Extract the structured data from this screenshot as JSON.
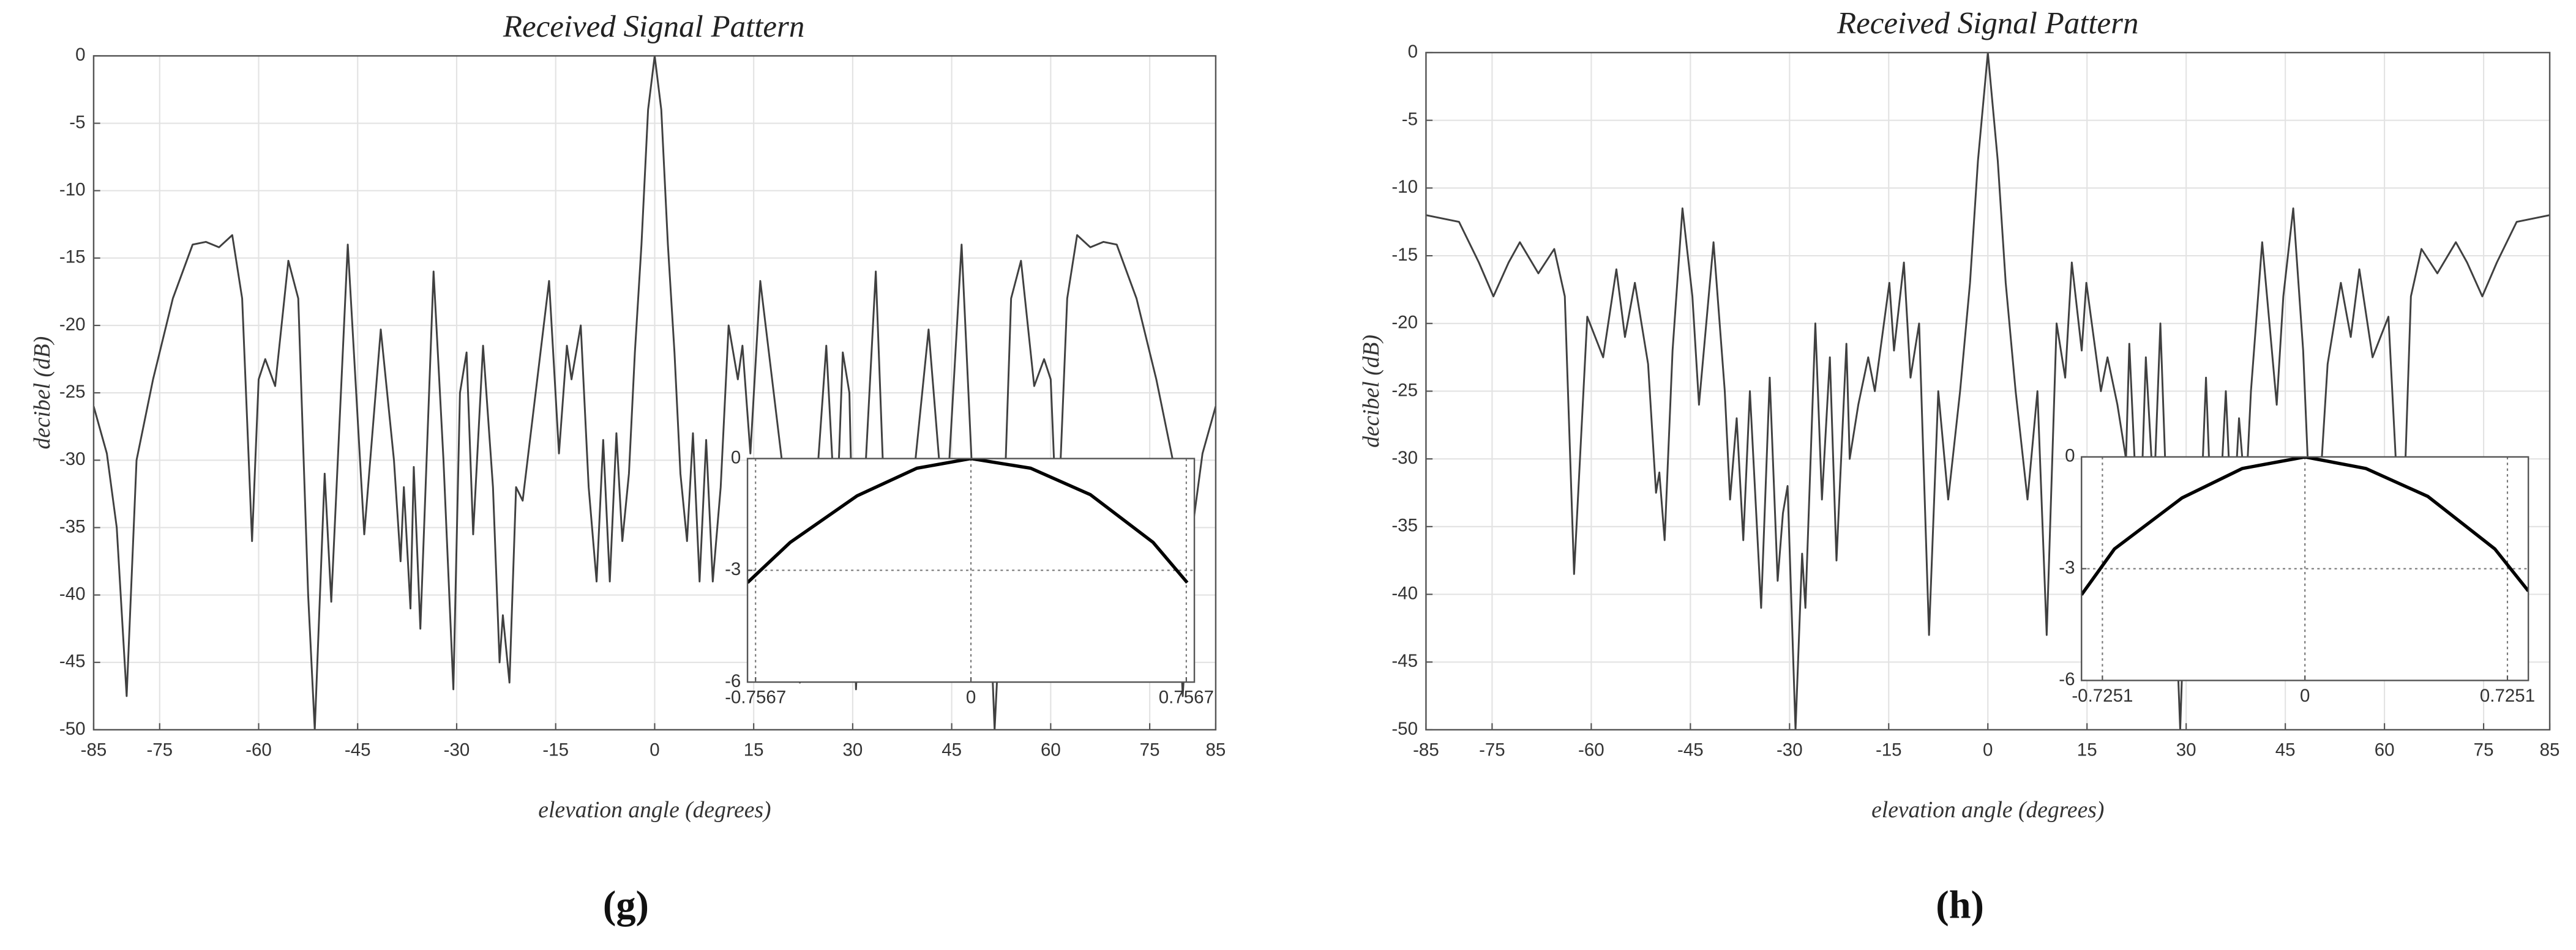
{
  "chart_data": [
    {
      "type": "line",
      "title": "Received Signal Pattern",
      "xlabel": "elevation angle (degrees)",
      "ylabel": "decibel (dB)",
      "caption": "(g)",
      "color": "#404040",
      "grid": true,
      "xlim": [
        -85,
        85
      ],
      "ylim": [
        -50,
        0
      ],
      "xticks": [
        -85,
        -75,
        -60,
        -45,
        -30,
        -15,
        0,
        15,
        30,
        45,
        60,
        75,
        85
      ],
      "yticks": [
        0,
        -5,
        -10,
        -15,
        -20,
        -25,
        -30,
        -35,
        -40,
        -45,
        -50
      ],
      "x": [
        -85,
        -83,
        -81.5,
        -80,
        -78.5,
        -76,
        -73,
        -70,
        -68,
        -66,
        -64,
        -62.5,
        -61,
        -60,
        -59,
        -57.5,
        -55.5,
        -54,
        -52.5,
        -51.5,
        -50,
        -49,
        -46.5,
        -44,
        -41.5,
        -39.5,
        -38.5,
        -38,
        -37,
        -36.5,
        -35.5,
        -33.5,
        -32,
        -30.5,
        -29.5,
        -28.5,
        -27.5,
        -26,
        -24.5,
        -23.5,
        -23,
        -22,
        -21,
        -20,
        -16,
        -14.5,
        -13.3,
        -12.6,
        -11.2,
        -10,
        -8.8,
        -7.8,
        -6.8,
        -5.8,
        -4.9,
        -3.9,
        -3,
        -2,
        -1,
        0,
        1,
        2,
        3,
        3.9,
        4.9,
        5.8,
        6.8,
        7.8,
        8.8,
        10,
        11.2,
        12.6,
        13.3,
        14.5,
        16,
        20,
        21,
        22,
        23,
        23.5,
        24.5,
        26,
        27.5,
        28.5,
        29.5,
        30.5,
        32,
        33.5,
        35.5,
        36.5,
        37,
        38,
        38.5,
        39.5,
        41.5,
        44,
        46.5,
        49,
        50,
        51.5,
        52.5,
        54,
        55.5,
        57.5,
        59,
        60,
        61,
        62.5,
        64,
        66,
        68,
        70,
        73,
        76,
        78.5,
        80,
        81.5,
        83,
        85
      ],
      "values": [
        -26,
        -29.5,
        -35,
        -47.5,
        -30,
        -24,
        -18,
        -14,
        -13.8,
        -14.2,
        -13.3,
        -18,
        -36,
        -24,
        -22.5,
        -24.5,
        -15.2,
        -18,
        -40,
        -50,
        -31,
        -40.5,
        -14,
        -35.5,
        -20.3,
        -30,
        -37.5,
        -32,
        -41,
        -30.5,
        -42.5,
        -16,
        -30,
        -47,
        -25,
        -22,
        -35.5,
        -21.5,
        -32,
        -45,
        -41.5,
        -46.5,
        -32,
        -33,
        -16.7,
        -29.5,
        -21.5,
        -24,
        -20,
        -32,
        -39,
        -28.5,
        -39,
        -28,
        -36,
        -31,
        -22,
        -14,
        -4,
        0,
        -4,
        -14,
        -22,
        -31,
        -36,
        -28,
        -39,
        -28.5,
        -39,
        -32,
        -20,
        -24,
        -21.5,
        -29.5,
        -16.7,
        -33,
        -32,
        -46.5,
        -41.5,
        -45,
        -32,
        -21.5,
        -35.5,
        -22,
        -25,
        -47,
        -30,
        -16,
        -42.5,
        -30.5,
        -41,
        -32,
        -37.5,
        -30,
        -20.3,
        -35.5,
        -14,
        -40.5,
        -31,
        -50,
        -40,
        -18,
        -15.2,
        -24.5,
        -22.5,
        -24,
        -36,
        -18,
        -13.3,
        -14.2,
        -13.8,
        -14,
        -18,
        -24,
        -30,
        -47.5,
        -35,
        -29.5,
        -26
      ],
      "inset": {
        "type": "line",
        "color": "#000000",
        "xlim": [
          -0.785,
          0.785
        ],
        "ylim": [
          -6,
          0
        ],
        "xticks": [
          -0.7567,
          0,
          0.7567
        ],
        "yticks": [
          0,
          -3,
          -6
        ],
        "x": [
          -0.785,
          -0.635,
          -0.4,
          -0.19,
          0,
          0.21,
          0.42,
          0.64,
          0.76
        ],
        "values": [
          -3.33,
          -2.25,
          -1.0,
          -0.26,
          0,
          -0.26,
          -0.97,
          -2.25,
          -3.33
        ]
      }
    },
    {
      "type": "line",
      "title": "Received Signal Pattern",
      "xlabel": "elevation angle (degrees)",
      "ylabel": "decibel (dB)",
      "caption": "(h)",
      "color": "#404040",
      "grid": true,
      "xlim": [
        -85,
        85
      ],
      "ylim": [
        -50,
        0
      ],
      "xticks": [
        -85,
        -75,
        -60,
        -45,
        -30,
        -15,
        0,
        15,
        30,
        45,
        60,
        75,
        85
      ],
      "yticks": [
        0,
        -5,
        -10,
        -15,
        -20,
        -25,
        -30,
        -35,
        -40,
        -45,
        -50
      ],
      "x": [
        -85,
        -80,
        -77,
        -74.8,
        -72.5,
        -70.8,
        -68,
        -65.6,
        -64,
        -62.6,
        -60.6,
        -58.2,
        -56.2,
        -54.9,
        -53.4,
        -51.4,
        -50.2,
        -49.7,
        -48.9,
        -47.7,
        -46.2,
        -44.7,
        -43.7,
        -41.5,
        -39.8,
        -39,
        -38,
        -37,
        -36,
        -34.3,
        -33,
        -31.8,
        -31,
        -30.3,
        -29.1,
        -28.1,
        -27.6,
        -26.1,
        -25.1,
        -23.9,
        -22.9,
        -21.4,
        -20.9,
        -19.6,
        -18.1,
        -17.1,
        -14.9,
        -14.2,
        -12.7,
        -11.7,
        -10.4,
        -8.9,
        -7.5,
        -6,
        -4.2,
        -2.7,
        -1.5,
        0,
        1.5,
        2.7,
        4.2,
        6,
        7.5,
        8.9,
        10.4,
        11.7,
        12.7,
        14.2,
        14.9,
        17.1,
        18.1,
        19.6,
        20.9,
        21.4,
        22.9,
        23.9,
        25.1,
        26.1,
        27.6,
        28.1,
        29.1,
        30.3,
        31,
        31.8,
        33,
        34.3,
        36,
        37,
        38,
        39,
        39.8,
        41.5,
        43.7,
        44.7,
        46.2,
        47.7,
        48.9,
        49.7,
        50.2,
        51.4,
        53.4,
        54.9,
        56.2,
        58.2,
        60.6,
        62.6,
        64,
        65.6,
        68,
        70.8,
        72.5,
        74.8,
        77,
        80,
        85
      ],
      "values": [
        -12,
        -12.5,
        -15.5,
        -18,
        -15.5,
        -14,
        -16.3,
        -14.5,
        -18,
        -38.5,
        -19.5,
        -22.5,
        -16,
        -21,
        -17,
        -23,
        -32.5,
        -31,
        -36,
        -22,
        -11.5,
        -18,
        -26,
        -14,
        -25,
        -33,
        -27,
        -36,
        -25,
        -41,
        -24,
        -39,
        -34,
        -32,
        -50,
        -37,
        -41,
        -20,
        -33,
        -22.5,
        -37.5,
        -21.5,
        -30,
        -26,
        -22.5,
        -25,
        -17,
        -22,
        -15.5,
        -24,
        -20,
        -43,
        -25,
        -33,
        -25,
        -17,
        -8,
        0,
        -8,
        -17,
        -25,
        -33,
        -25,
        -43,
        -20,
        -24,
        -15.5,
        -22,
        -17,
        -25,
        -22.5,
        -26,
        -30,
        -21.5,
        -37.5,
        -22.5,
        -33,
        -20,
        -41,
        -37,
        -50,
        -32,
        -34,
        -39,
        -24,
        -41,
        -25,
        -36,
        -27,
        -33,
        -25,
        -14,
        -26,
        -18,
        -11.5,
        -22,
        -36,
        -31,
        -32.5,
        -23,
        -17,
        -21,
        -16,
        -22.5,
        -19.5,
        -38.5,
        -18,
        -14.5,
        -16.3,
        -14,
        -15.5,
        -18,
        -15.5,
        -12.5,
        -12
      ],
      "inset": {
        "type": "line",
        "color": "#000000",
        "xlim": [
          -0.8,
          0.8
        ],
        "ylim": [
          -6,
          0
        ],
        "xticks": [
          -0.7251,
          0,
          0.7251
        ],
        "yticks": [
          0,
          -3,
          -6
        ],
        "x": [
          -0.8,
          -0.682,
          -0.44,
          -0.224,
          0,
          0.218,
          0.44,
          0.68,
          0.8
        ],
        "values": [
          -3.7,
          -2.47,
          -1.1,
          -0.31,
          0,
          -0.31,
          -1.06,
          -2.47,
          -3.6
        ]
      }
    }
  ]
}
